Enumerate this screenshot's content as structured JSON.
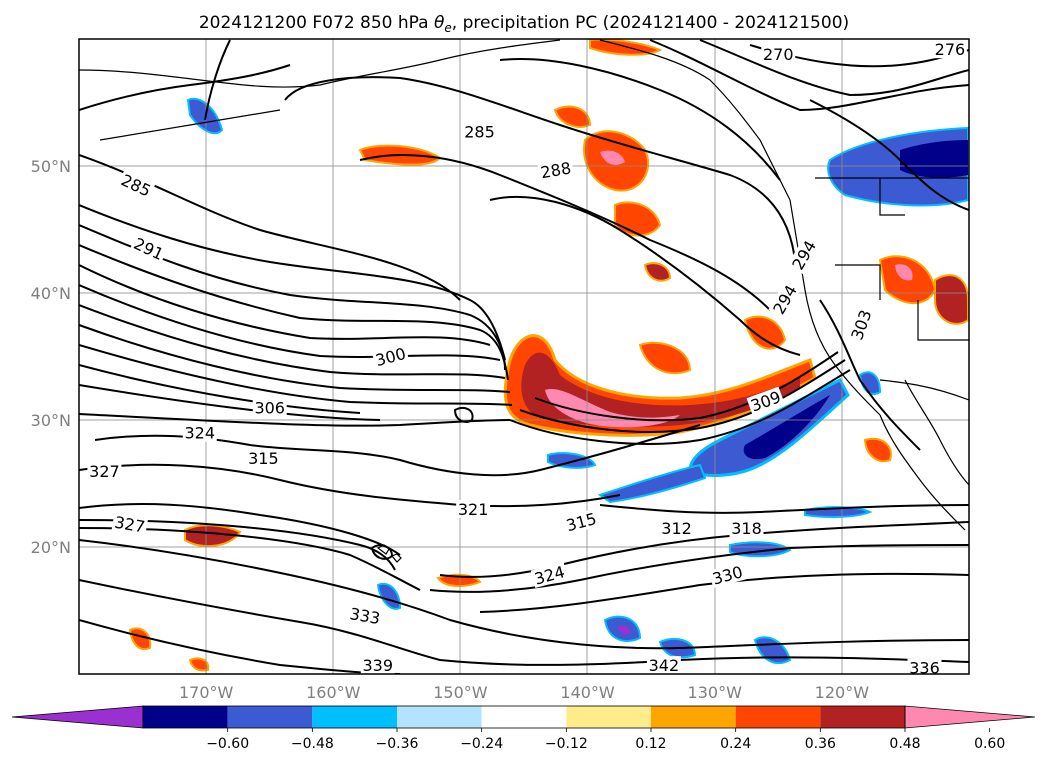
{
  "title": "2024121200 F072 850 hPa θe, precipitation PC (2024121400 - 2024121500)",
  "title_parts": {
    "prefix": "2024121200 F072 850 hPa ",
    "theta": "θ",
    "theta_sub": "e",
    "suffix": ", precipitation PC (2024121400 - 2024121500)"
  },
  "map": {
    "lon_range": [
      -180,
      -110
    ],
    "lat_range": [
      10,
      60
    ],
    "lon_ticks": [
      {
        "lon": -170,
        "label": "170°W"
      },
      {
        "lon": -160,
        "label": "160°W"
      },
      {
        "lon": -150,
        "label": "150°W"
      },
      {
        "lon": -140,
        "label": "140°W"
      },
      {
        "lon": -130,
        "label": "130°W"
      },
      {
        "lon": -120,
        "label": "120°W"
      }
    ],
    "lat_ticks": [
      {
        "lat": 50,
        "label": "50°N"
      },
      {
        "lat": 40,
        "label": "40°N"
      },
      {
        "lat": 30,
        "label": "30°N"
      },
      {
        "lat": 20,
        "label": "20°N"
      }
    ],
    "grid": true
  },
  "theta_e_contour_labels": [
    {
      "text": "285",
      "lon": -175.5,
      "lat": 48.5,
      "rot": 25
    },
    {
      "text": "291",
      "lon": -174.5,
      "lat": 43.5,
      "rot": 25
    },
    {
      "text": "300",
      "lon": -155.5,
      "lat": 35.0,
      "rot": -15
    },
    {
      "text": "306",
      "lon": -165.0,
      "lat": 31.0,
      "rot": 0
    },
    {
      "text": "324",
      "lon": -170.5,
      "lat": 29.0,
      "rot": 0
    },
    {
      "text": "315",
      "lon": -165.5,
      "lat": 27.0,
      "rot": 0
    },
    {
      "text": "327",
      "lon": -178.0,
      "lat": 26.0,
      "rot": 0
    },
    {
      "text": "327",
      "lon": -176.0,
      "lat": 21.8,
      "rot": 10
    },
    {
      "text": "321",
      "lon": -149.0,
      "lat": 23.0,
      "rot": 0
    },
    {
      "text": "315",
      "lon": -140.5,
      "lat": 22.0,
      "rot": -15
    },
    {
      "text": "312",
      "lon": -133.0,
      "lat": 21.5,
      "rot": 0
    },
    {
      "text": "318",
      "lon": -127.5,
      "lat": 21.5,
      "rot": 0
    },
    {
      "text": "324",
      "lon": -143.0,
      "lat": 17.8,
      "rot": -15
    },
    {
      "text": "330",
      "lon": -129.0,
      "lat": 17.8,
      "rot": -15
    },
    {
      "text": "333",
      "lon": -157.5,
      "lat": 14.6,
      "rot": 10
    },
    {
      "text": "339",
      "lon": -156.5,
      "lat": 10.7,
      "rot": 0
    },
    {
      "text": "342",
      "lon": -134.0,
      "lat": 10.7,
      "rot": 0
    },
    {
      "text": "336",
      "lon": -113.5,
      "lat": 10.5,
      "rot": 0
    },
    {
      "text": "285",
      "lon": -148.5,
      "lat": 52.7,
      "rot": 0
    },
    {
      "text": "288",
      "lon": -142.5,
      "lat": 49.7,
      "rot": -10
    },
    {
      "text": "270",
      "lon": -125.0,
      "lat": 58.8,
      "rot": 0
    },
    {
      "text": "276",
      "lon": -111.5,
      "lat": 59.2,
      "rot": 0
    },
    {
      "text": "294",
      "lon": -123.0,
      "lat": 43.0,
      "rot": -60
    },
    {
      "text": "294",
      "lon": -124.5,
      "lat": 39.5,
      "rot": -60
    },
    {
      "text": "303",
      "lon": -118.5,
      "lat": 37.5,
      "rot": -70
    },
    {
      "text": "309",
      "lon": -126.0,
      "lat": 31.5,
      "rot": -20
    }
  ],
  "precip_pc_colorbar": {
    "levels": [
      -0.72,
      -0.6,
      -0.48,
      -0.36,
      -0.24,
      -0.12,
      0.12,
      0.24,
      0.36,
      0.48,
      0.6,
      0.72
    ],
    "tick_labels": [
      "−0.60",
      "−0.48",
      "−0.36",
      "−0.24",
      "−0.12",
      "0.12",
      "0.24",
      "0.36",
      "0.48",
      "0.60"
    ],
    "colors": [
      "#9b30d0",
      "#00008b",
      "#3c5ad2",
      "#00bfff",
      "#b3e3ff",
      "#ffffff",
      "#ffec8b",
      "#ffa500",
      "#ff4500",
      "#b22222",
      "#ff88b0"
    ],
    "extend": "both"
  },
  "colors": {
    "grid": "#8c8c8c",
    "contour": "#000000",
    "tick_text": "#7f7f7f"
  }
}
